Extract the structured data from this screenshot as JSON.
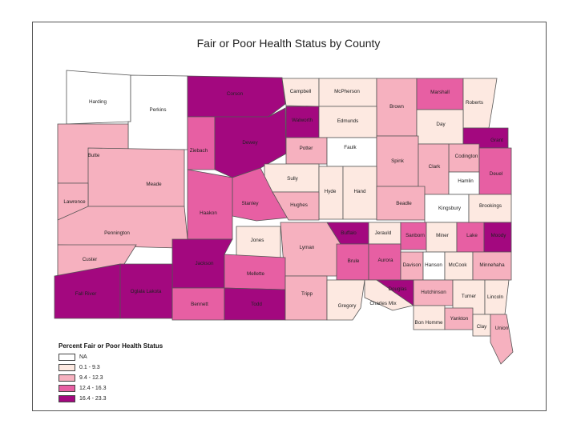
{
  "title": "Fair or Poor Health Status by County",
  "legend": {
    "title": "Percent Fair or Poor Health Status",
    "classes": [
      {
        "label": "NA",
        "color": "#ffffff"
      },
      {
        "label": "0.1 - 9.3",
        "color": "#fde9e1"
      },
      {
        "label": "9.4 - 12.3",
        "color": "#f6b1bf"
      },
      {
        "label": "12.4 - 16.3",
        "color": "#e75fa3"
      },
      {
        "label": "16.4 - 23.3",
        "color": "#a3087f"
      }
    ]
  },
  "counties": [
    {
      "name": "Harding",
      "class": 0
    },
    {
      "name": "Perkins",
      "class": 0
    },
    {
      "name": "Corson",
      "class": 4
    },
    {
      "name": "Campbell",
      "class": 1
    },
    {
      "name": "McPherson",
      "class": 1
    },
    {
      "name": "Brown",
      "class": 2
    },
    {
      "name": "Marshall",
      "class": 3
    },
    {
      "name": "Roberts",
      "class": 1
    },
    {
      "name": "Butte",
      "class": 2
    },
    {
      "name": "Ziebach",
      "class": 3
    },
    {
      "name": "Dewey",
      "class": 4
    },
    {
      "name": "Walworth",
      "class": 4
    },
    {
      "name": "Edmunds",
      "class": 1
    },
    {
      "name": "Day",
      "class": 1
    },
    {
      "name": "Grant",
      "class": 4
    },
    {
      "name": "Potter",
      "class": 2
    },
    {
      "name": "Faulk",
      "class": 0
    },
    {
      "name": "Spink",
      "class": 2
    },
    {
      "name": "Codington",
      "class": 2
    },
    {
      "name": "Clark",
      "class": 2
    },
    {
      "name": "Meade",
      "class": 2
    },
    {
      "name": "Lawrence",
      "class": 2
    },
    {
      "name": "Sully",
      "class": 1
    },
    {
      "name": "Hyde",
      "class": 1
    },
    {
      "name": "Hand",
      "class": 1
    },
    {
      "name": "Deuel",
      "class": 3
    },
    {
      "name": "Hamlin",
      "class": 0
    },
    {
      "name": "Stanley",
      "class": 3
    },
    {
      "name": "Hughes",
      "class": 2
    },
    {
      "name": "Beadle",
      "class": 2
    },
    {
      "name": "Kingsbury",
      "class": 0
    },
    {
      "name": "Brookings",
      "class": 1
    },
    {
      "name": "Haakon",
      "class": 3
    },
    {
      "name": "Pennington",
      "class": 2
    },
    {
      "name": "Jones",
      "class": 1
    },
    {
      "name": "Buffalo",
      "class": 4
    },
    {
      "name": "Jerauld",
      "class": 1
    },
    {
      "name": "Sanborn",
      "class": 3
    },
    {
      "name": "Miner",
      "class": 1
    },
    {
      "name": "Lake",
      "class": 3
    },
    {
      "name": "Moody",
      "class": 4
    },
    {
      "name": "Custer",
      "class": 2
    },
    {
      "name": "Jackson",
      "class": 4
    },
    {
      "name": "Lyman",
      "class": 2
    },
    {
      "name": "Brule",
      "class": 3
    },
    {
      "name": "Aurora",
      "class": 3
    },
    {
      "name": "Davison",
      "class": 2
    },
    {
      "name": "Hanson",
      "class": 0
    },
    {
      "name": "McCook",
      "class": 1
    },
    {
      "name": "Minnehaha",
      "class": 2
    },
    {
      "name": "Mellette",
      "class": 3
    },
    {
      "name": "Fall River",
      "class": 4
    },
    {
      "name": "Oglala Lakota",
      "class": 4
    },
    {
      "name": "Bennett",
      "class": 3
    },
    {
      "name": "Todd",
      "class": 4
    },
    {
      "name": "Tripp",
      "class": 2
    },
    {
      "name": "Gregory",
      "class": 1
    },
    {
      "name": "Charles Mix",
      "class": 1
    },
    {
      "name": "Douglas",
      "class": 4
    },
    {
      "name": "Hutchinson",
      "class": 2
    },
    {
      "name": "Turner",
      "class": 1
    },
    {
      "name": "Lincoln",
      "class": 1
    },
    {
      "name": "Bon Homme",
      "class": 1
    },
    {
      "name": "Yankton",
      "class": 2
    },
    {
      "name": "Clay",
      "class": 1
    },
    {
      "name": "Union",
      "class": 2
    }
  ]
}
